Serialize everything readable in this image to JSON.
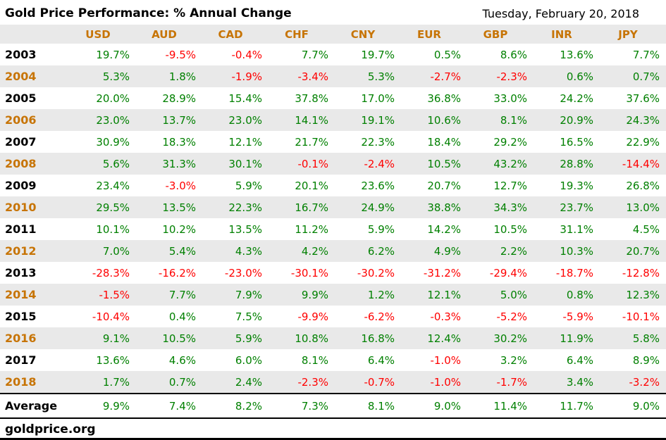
{
  "title": "Gold Price Performance: % Annual Change",
  "date": "Tuesday, February 20, 2018",
  "footer": {
    "site": "goldprice.org"
  },
  "colors": {
    "positive_green": "#008000",
    "negative_red": "#FF0000",
    "accent_orange": "#C77405",
    "row_alt_gray": "#E9E9E9"
  },
  "chart_data": {
    "type": "table",
    "title": "Gold Price Performance: % Annual Change",
    "date": "Tuesday, February 20, 2018",
    "unit": "%",
    "columns": [
      "USD",
      "AUD",
      "CAD",
      "CHF",
      "CNY",
      "EUR",
      "GBP",
      "INR",
      "JPY"
    ],
    "rows": [
      {
        "year": "2003",
        "values": [
          19.7,
          -9.5,
          -0.4,
          7.7,
          19.7,
          0.5,
          8.6,
          13.6,
          7.7
        ]
      },
      {
        "year": "2004",
        "values": [
          5.3,
          1.8,
          -1.9,
          -3.4,
          5.3,
          -2.7,
          -2.3,
          0.6,
          0.7
        ]
      },
      {
        "year": "2005",
        "values": [
          20.0,
          28.9,
          15.4,
          37.8,
          17.0,
          36.8,
          33.0,
          24.2,
          37.6
        ]
      },
      {
        "year": "2006",
        "values": [
          23.0,
          13.7,
          23.0,
          14.1,
          19.1,
          10.6,
          8.1,
          20.9,
          24.3
        ]
      },
      {
        "year": "2007",
        "values": [
          30.9,
          18.3,
          12.1,
          21.7,
          22.3,
          18.4,
          29.2,
          16.5,
          22.9
        ]
      },
      {
        "year": "2008",
        "values": [
          5.6,
          31.3,
          30.1,
          -0.1,
          -2.4,
          10.5,
          43.2,
          28.8,
          -14.4
        ]
      },
      {
        "year": "2009",
        "values": [
          23.4,
          -3.0,
          5.9,
          20.1,
          23.6,
          20.7,
          12.7,
          19.3,
          26.8
        ]
      },
      {
        "year": "2010",
        "values": [
          29.5,
          13.5,
          22.3,
          16.7,
          24.9,
          38.8,
          34.3,
          23.7,
          13.0
        ]
      },
      {
        "year": "2011",
        "values": [
          10.1,
          10.2,
          13.5,
          11.2,
          5.9,
          14.2,
          10.5,
          31.1,
          4.5
        ]
      },
      {
        "year": "2012",
        "values": [
          7.0,
          5.4,
          4.3,
          4.2,
          6.2,
          4.9,
          2.2,
          10.3,
          20.7
        ]
      },
      {
        "year": "2013",
        "values": [
          -28.3,
          -16.2,
          -23.0,
          -30.1,
          -30.2,
          -31.2,
          -29.4,
          -18.7,
          -12.8
        ]
      },
      {
        "year": "2014",
        "values": [
          -1.5,
          7.7,
          7.9,
          9.9,
          1.2,
          12.1,
          5.0,
          0.8,
          12.3
        ]
      },
      {
        "year": "2015",
        "values": [
          -10.4,
          0.4,
          7.5,
          -9.9,
          -6.2,
          -0.3,
          -5.2,
          -5.9,
          -10.1
        ]
      },
      {
        "year": "2016",
        "values": [
          9.1,
          10.5,
          5.9,
          10.8,
          16.8,
          12.4,
          30.2,
          11.9,
          5.8
        ]
      },
      {
        "year": "2017",
        "values": [
          13.6,
          4.6,
          6.0,
          8.1,
          6.4,
          -1.0,
          3.2,
          6.4,
          8.9
        ]
      },
      {
        "year": "2018",
        "values": [
          1.7,
          0.7,
          2.4,
          -2.3,
          -0.7,
          -1.0,
          -1.7,
          3.4,
          -3.2
        ]
      }
    ],
    "average_label": "Average",
    "average": [
      9.9,
      7.4,
      8.2,
      7.3,
      8.1,
      9.0,
      11.4,
      11.7,
      9.0
    ],
    "legend_position": "none",
    "grid": false
  }
}
